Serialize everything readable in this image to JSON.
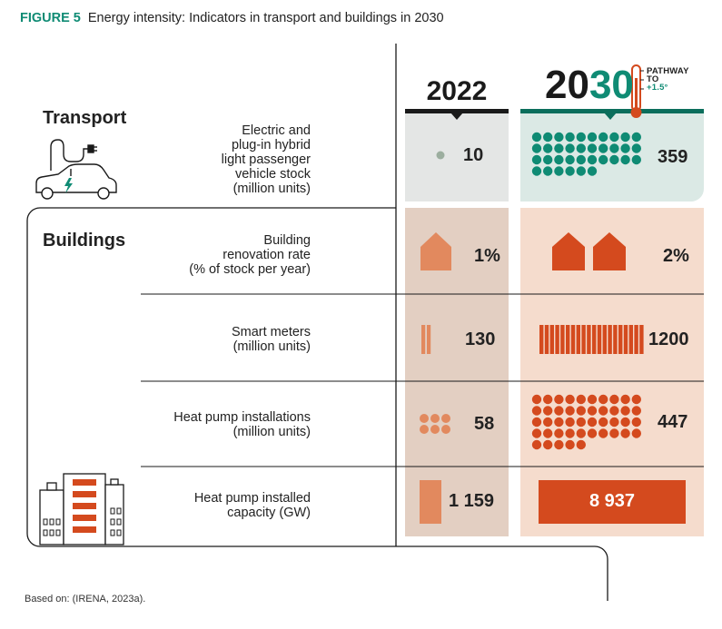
{
  "figure": {
    "label": "FIGURE 5",
    "title": "Energy intensity: Indicators in transport and buildings in 2030"
  },
  "columns": {
    "year_2022": "2022",
    "year_2030_prefix": "20",
    "year_2030_suffix": "30",
    "pathway_line1": "PATHWAY",
    "pathway_line2": "TO",
    "pathway_line3": "+1.5°"
  },
  "sections": {
    "transport": "Transport",
    "buildings": "Buildings"
  },
  "rows": [
    {
      "label_lines": [
        "Electric and",
        "plug-in hybrid",
        "light passenger",
        "vehicle stock",
        "(million units)"
      ],
      "value_2022": "10",
      "value_2030": "359"
    },
    {
      "label_lines": [
        "Building",
        "renovation rate",
        "(% of stock per year)"
      ],
      "value_2022": "1%",
      "value_2030": "2%"
    },
    {
      "label_lines": [
        "Smart meters",
        "(million units)"
      ],
      "value_2022": "130",
      "value_2030": "1200"
    },
    {
      "label_lines": [
        "Heat pump installations",
        "(million units)"
      ],
      "value_2022": "58",
      "value_2030": "447"
    },
    {
      "label_lines": [
        "Heat pump installed",
        "capacity (GW)"
      ],
      "value_2022": "1 159",
      "value_2030": "8 937"
    }
  ],
  "chart_data": {
    "type": "table",
    "title": "Energy intensity: Indicators in transport and buildings in 2030",
    "columns": [
      "2022",
      "2030 (Pathway to +1.5°)"
    ],
    "indicators": [
      {
        "sector": "Transport",
        "name": "Electric and plug-in hybrid light passenger vehicle stock",
        "unit": "million units",
        "y2022": 10,
        "y2030": 359
      },
      {
        "sector": "Buildings",
        "name": "Building renovation rate",
        "unit": "% of stock per year",
        "y2022": 1,
        "y2030": 2
      },
      {
        "sector": "Buildings",
        "name": "Smart meters",
        "unit": "million units",
        "y2022": 130,
        "y2030": 1200
      },
      {
        "sector": "Buildings",
        "name": "Heat pump installations",
        "unit": "million units",
        "y2022": 58,
        "y2030": 447
      },
      {
        "sector": "Buildings",
        "name": "Heat pump installed capacity",
        "unit": "GW",
        "y2022": 1159,
        "y2030": 8937
      }
    ],
    "icon_counts": {
      "ev_dots_2022": 1,
      "ev_dots_2030": 36,
      "houses_2022": 1,
      "houses_2030": 2,
      "meter_bars_2022": 2,
      "meter_bars_2030": 20,
      "hp_dots_2022": 6,
      "hp_dots_2030": 45
    }
  },
  "colors": {
    "teal": "#0f8b74",
    "teal_dark": "#0b6e5c",
    "grey_panel": "#e4e6e5",
    "teal_panel": "#dbe9e5",
    "brown_panel": "#e3cfc2",
    "peach_panel": "#f5dccd",
    "orange_light": "#e2895e",
    "orange_dark": "#d44a1e",
    "dot_grey": "#9cae9f"
  },
  "source": "Based on: (IRENA, 2023a)."
}
